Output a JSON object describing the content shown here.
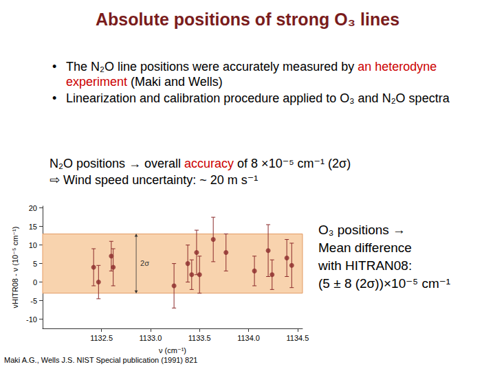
{
  "slide": {
    "title": "Absolute positions of strong O₃ lines",
    "bullets": [
      [
        {
          "text": "The N₂O line positions were accurately measured by "
        },
        {
          "text": "an heterodyne experiment",
          "color": "#cc0000"
        },
        {
          "text": " (Maki and Wells)"
        }
      ],
      [
        {
          "text": "Linearization and calibration procedure applied to O₃ and N₂O spectra"
        }
      ]
    ],
    "summary": [
      [
        {
          "text": "N₂O positions → overall "
        },
        {
          "text": "accuracy",
          "color": "#cc0000"
        },
        {
          "text": " of 8 ×10⁻⁵ cm⁻¹ (2σ)"
        }
      ],
      [
        {
          "text": "⇨ Wind speed uncertainty: ~ 20 m s⁻¹"
        }
      ]
    ],
    "side_note": [
      "O₃ positions →",
      "Mean difference",
      "with HITRAN08:",
      "(5 ± 8 (2σ))×10⁻⁵ cm⁻¹"
    ],
    "reference": "Maki A.G., Wells J.S. NIST Special publication (1991) 821"
  },
  "chart_data": {
    "type": "scatter",
    "x_label": "ν (cm⁻¹)",
    "y_label": "νHITR08 - ν (10⁻⁵ cm⁻¹)",
    "x": [
      1132.42,
      1132.47,
      1132.6,
      1132.62,
      1133.24,
      1133.38,
      1133.42,
      1133.47,
      1133.5,
      1133.64,
      1133.77,
      1134.06,
      1134.2,
      1134.24,
      1134.39,
      1134.44
    ],
    "values": [
      4,
      0,
      7,
      4,
      -1,
      5,
      2,
      8,
      2,
      11.5,
      8,
      3,
      8.5,
      2,
      6.5,
      4.5
    ],
    "errors": [
      5,
      4.5,
      4,
      5,
      6,
      5,
      4,
      6,
      5,
      6,
      5,
      4,
      7,
      4,
      5,
      6
    ],
    "color": "#8b2a2a",
    "marker": "circle",
    "xlim": [
      1131.9,
      1134.55
    ],
    "xticks": [
      1132.5,
      {
        "value": 1133,
        "label": "1133.0"
      },
      1133.5,
      {
        "value": 1134,
        "label": "1134.0"
      },
      1134.5
    ],
    "ylim": [
      -12.5,
      20.5
    ],
    "yticks": [
      -10,
      -5,
      0,
      5,
      10,
      15,
      20
    ],
    "band": {
      "lower": -3,
      "upper": 13,
      "label": "2σ",
      "color": "#f8d3ae"
    },
    "grid": false
  }
}
